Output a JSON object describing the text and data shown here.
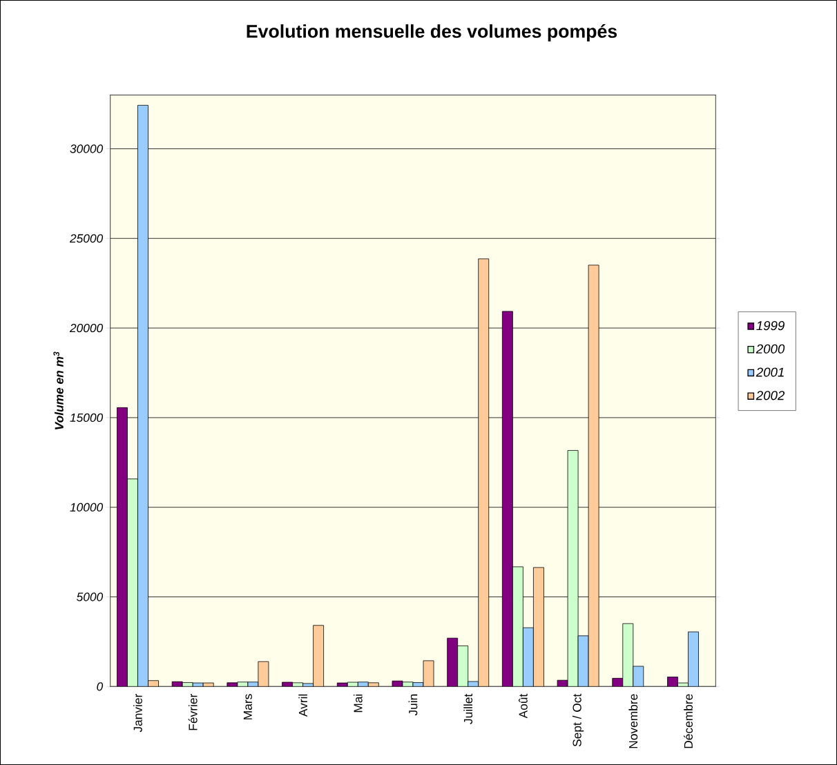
{
  "chart_data": {
    "type": "bar",
    "title": "Evolution mensuelle des volumes pompés",
    "ylabel": "Volume en m$^{3}$",
    "categories": [
      "Janvier",
      "Février",
      "Mars",
      "Avril",
      "Mai",
      "Juin",
      "Juillet",
      "Août",
      "Sept / Oct",
      "Novembre",
      "Décembre"
    ],
    "series": [
      {
        "name": "1999",
        "color": "#800080",
        "values": [
          15560,
          270,
          210,
          240,
          200,
          310,
          2700,
          20930,
          350,
          460,
          530
        ]
      },
      {
        "name": "2000",
        "color": "#ccffcc",
        "values": [
          11580,
          220,
          250,
          210,
          240,
          250,
          2270,
          6680,
          13170,
          3510,
          200
        ]
      },
      {
        "name": "2001",
        "color": "#99ccff",
        "values": [
          32430,
          200,
          250,
          170,
          250,
          220,
          280,
          3280,
          2830,
          1130,
          3050
        ]
      },
      {
        "name": "2002",
        "color": "#ffcc99",
        "values": [
          330,
          200,
          1390,
          3410,
          210,
          1440,
          23860,
          6640,
          23510,
          null,
          null
        ]
      }
    ],
    "ylim": [
      0,
      33000
    ],
    "yticks": [
      0,
      5000,
      10000,
      15000,
      20000,
      25000,
      30000
    ],
    "grid": "y",
    "legend": "right"
  }
}
